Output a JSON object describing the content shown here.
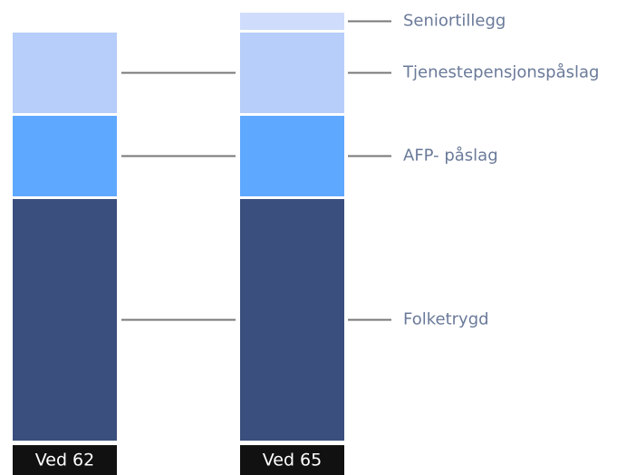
{
  "chart_data": {
    "type": "stacked_bar",
    "categories": [
      "Ved 62",
      "Ved 65"
    ],
    "series": [
      {
        "name": "Folketrygd",
        "color": "#3a4f7e",
        "values": [
          270,
          270
        ]
      },
      {
        "name": "AFP- påslag",
        "color": "#5fa8ff",
        "values": [
          92,
          92
        ]
      },
      {
        "name": "Tjenestepensjonspåslag",
        "color": "#b7cdfa",
        "values": [
          92,
          92
        ]
      },
      {
        "name": "Seniortillegg",
        "color": "#cfdcfb",
        "values": [
          0,
          22
        ]
      }
    ]
  }
}
